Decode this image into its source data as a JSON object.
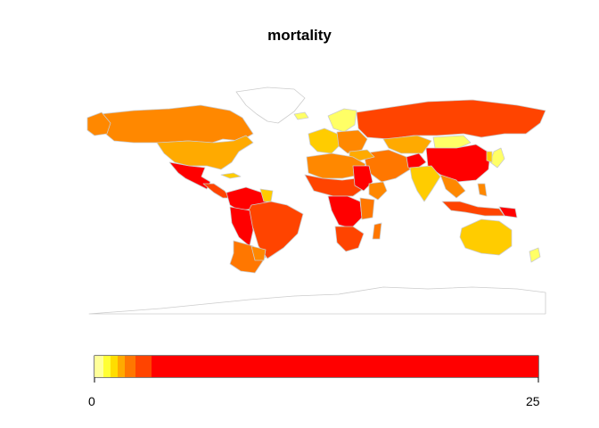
{
  "title": "mortality",
  "legend": {
    "min_label": "0",
    "max_label": "25",
    "colors": [
      "#ffff99",
      "#ffff33",
      "#ffdd00",
      "#ffaa00",
      "#ff7700",
      "#ff4400",
      "#ff0000"
    ]
  },
  "palette": {
    "country_fill_light": "#ffcc00",
    "country_fill_mid": "#ff8800",
    "country_fill_high": "#ff4400",
    "country_fill_max": "#ff0000",
    "pale": "#ffff66",
    "border": "#cccccc",
    "no_data_fill": "#ffffff"
  }
}
